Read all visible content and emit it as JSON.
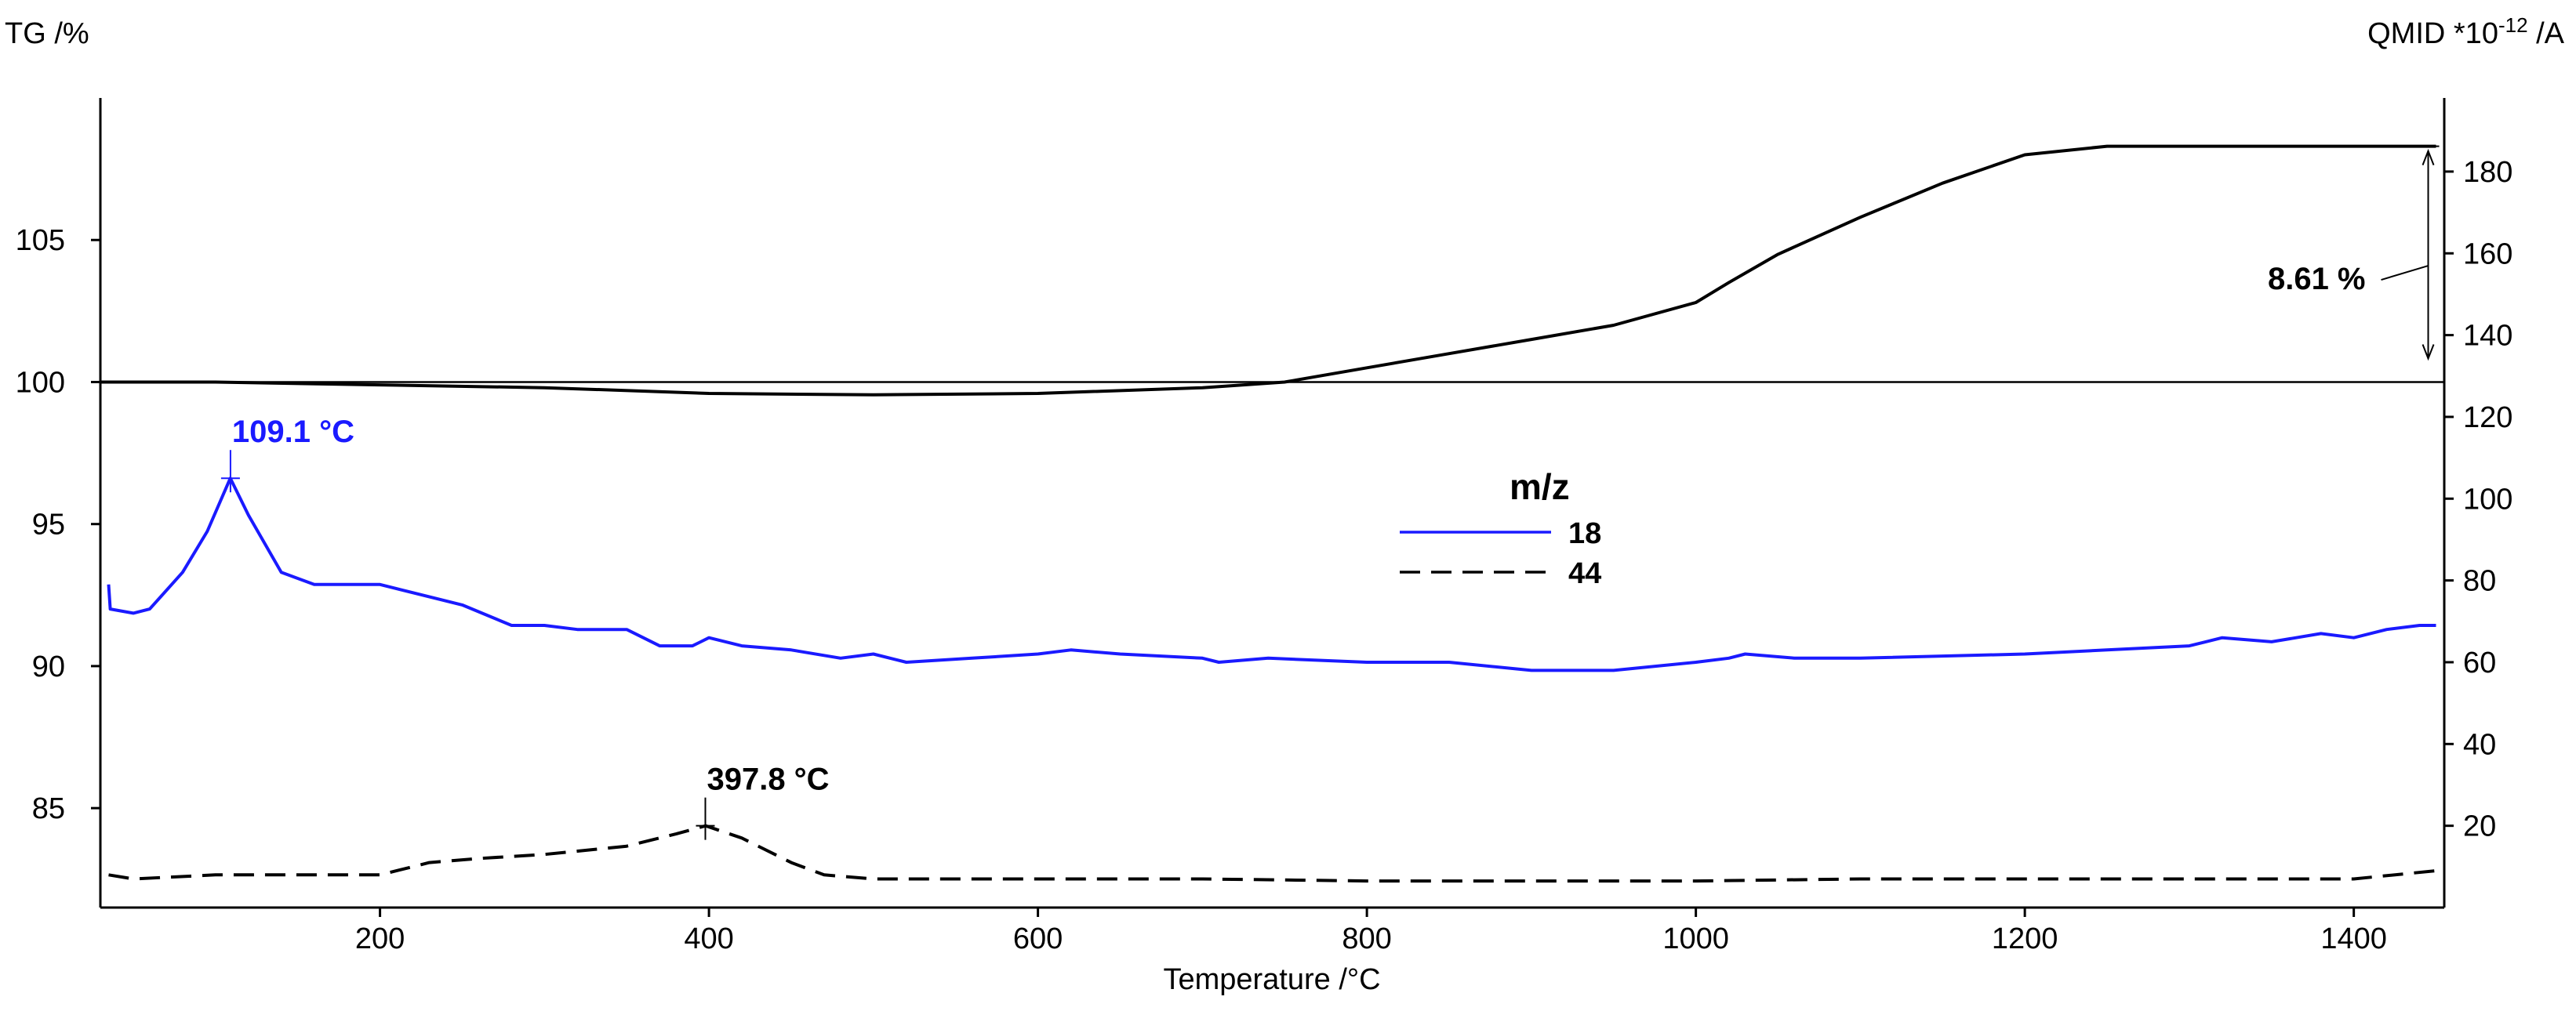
{
  "chart_data": {
    "type": "line",
    "left_axis": {
      "title": "TG /%",
      "range": [
        81.5,
        110
      ],
      "ticks": [
        85,
        90,
        95,
        100,
        105
      ]
    },
    "right_axis": {
      "title_main": "QMID *10",
      "title_exp": "-12",
      "title_unit": " /A",
      "range": [
        0,
        198
      ],
      "ticks": [
        20,
        40,
        60,
        80,
        100,
        120,
        140,
        160,
        180
      ]
    },
    "x_axis": {
      "label": "Temperature /°C",
      "range": [
        30,
        1455
      ],
      "ticks": [
        200,
        400,
        600,
        800,
        1000,
        1200,
        1400
      ]
    },
    "legend": {
      "title": "m/z",
      "placement": "center",
      "entries": [
        {
          "label": "18",
          "color": "#1a1aff",
          "style": "solid"
        },
        {
          "label": "44",
          "color": "#000000",
          "style": "dashed"
        }
      ]
    },
    "series": [
      {
        "name": "TG",
        "axis": "left",
        "color": "#000000",
        "style": "solid",
        "x": [
          30,
          100,
          200,
          300,
          400,
          500,
          600,
          700,
          750,
          800,
          850,
          900,
          950,
          1000,
          1020,
          1050,
          1100,
          1150,
          1200,
          1250,
          1300,
          1400,
          1450
        ],
        "y": [
          100,
          100,
          99.9,
          99.8,
          99.6,
          99.55,
          99.6,
          99.8,
          100,
          100.5,
          101,
          101.5,
          102,
          102.8,
          103.5,
          104.5,
          105.8,
          107,
          108,
          108.3,
          108.3,
          108.3,
          108.3
        ]
      },
      {
        "name": "18",
        "axis": "right",
        "color": "#1a1aff",
        "style": "solid",
        "x": [
          35,
          36,
          50,
          60,
          80,
          95,
          109,
          120,
          140,
          160,
          200,
          210,
          250,
          280,
          300,
          320,
          350,
          370,
          390,
          400,
          420,
          450,
          480,
          500,
          520,
          560,
          600,
          620,
          650,
          700,
          710,
          740,
          800,
          850,
          900,
          950,
          1000,
          1020,
          1030,
          1060,
          1100,
          1200,
          1250,
          1300,
          1310,
          1320,
          1350,
          1380,
          1400,
          1420,
          1440,
          1450
        ],
        "y": [
          79,
          73,
          72,
          73,
          82,
          92,
          105,
          96,
          82,
          79,
          79,
          78,
          74,
          69,
          69,
          68,
          68,
          64,
          64,
          66,
          64,
          63,
          61,
          62,
          60,
          61,
          62,
          63,
          62,
          61,
          60,
          61,
          60,
          60,
          58,
          58,
          60,
          61,
          62,
          61,
          61,
          62,
          63,
          64,
          65,
          66,
          65,
          67,
          66,
          68,
          69,
          69
        ]
      },
      {
        "name": "44",
        "axis": "right",
        "color": "#000000",
        "style": "dashed",
        "x": [
          35,
          50,
          100,
          200,
          230,
          260,
          300,
          350,
          380,
          398,
          420,
          450,
          470,
          500,
          600,
          700,
          800,
          900,
          1000,
          1100,
          1200,
          1300,
          1400,
          1450
        ],
        "y": [
          8,
          7,
          8,
          8,
          11,
          12,
          13,
          15,
          18,
          20,
          17,
          11,
          8,
          7,
          7,
          7,
          6.5,
          6.5,
          6.5,
          7,
          7,
          7,
          7,
          9
        ]
      }
    ],
    "annotations": [
      {
        "text": "109.1 °C",
        "x": 109.1,
        "y": 105,
        "axis": "right",
        "color": "#1a1aff"
      },
      {
        "text": "397.8 °C",
        "x": 397.8,
        "y": 20,
        "axis": "right",
        "color": "#000000"
      },
      {
        "text": "8.61 %",
        "x": 1450,
        "y_from": 100,
        "y_to": 108.3,
        "axis": "left",
        "color": "#000000"
      }
    ],
    "reference_line": {
      "y": 100,
      "axis": "left"
    }
  }
}
